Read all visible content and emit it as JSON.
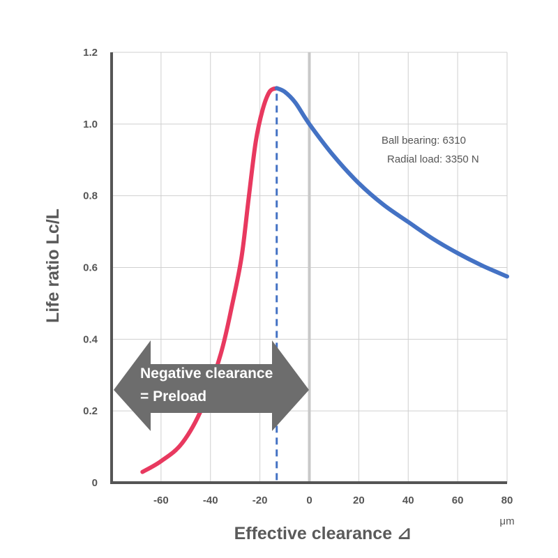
{
  "chart_data": {
    "type": "line",
    "xlabel": "Effective clearance  ⊿",
    "xunit": "μm",
    "ylabel": "Life ratio  Lc/L",
    "xlim": [
      -80,
      80
    ],
    "ylim": [
      0,
      1.2
    ],
    "xticks": [
      -60,
      -40,
      -20,
      0,
      20,
      40,
      60,
      80
    ],
    "yticks": [
      0,
      0.2,
      0.4,
      0.6,
      0.8,
      1.0,
      1.2
    ],
    "ytick_labels": [
      "0",
      "0.2",
      "0.4",
      "0.6",
      "0.8",
      "1.0",
      "1.2"
    ],
    "grid": true,
    "series": [
      {
        "color": "#e8395f",
        "x": [
          -67.5,
          -60,
          -51.5,
          -43.3,
          -35.8,
          -31.1,
          -27.4,
          -24.6,
          -21.7,
          -18.9,
          -16.1,
          -13.2
        ],
        "y": [
          0.03,
          0.06,
          0.11,
          0.21,
          0.36,
          0.5,
          0.63,
          0.79,
          0.95,
          1.04,
          1.09,
          1.1
        ]
      },
      {
        "color": "#4472c4",
        "x": [
          -13.2,
          -10,
          -5.7,
          0,
          10,
          20,
          30,
          40,
          50,
          60,
          70,
          80
        ],
        "y": [
          1.1,
          1.09,
          1.06,
          1.0,
          0.91,
          0.835,
          0.775,
          0.727,
          0.68,
          0.64,
          0.605,
          0.575
        ]
      }
    ],
    "peak_marker": {
      "x": -13.2,
      "style": "dashed",
      "color": "#4472c4"
    },
    "zero_line": {
      "x": 0,
      "color": "#c8c8c8"
    },
    "annotations": [
      "Ball bearing: 6310",
      "Radial load: 3350 N"
    ],
    "arrow_label": [
      "Negative clearance",
      "= Preload"
    ],
    "arrow_color": "#6d6d6d"
  }
}
